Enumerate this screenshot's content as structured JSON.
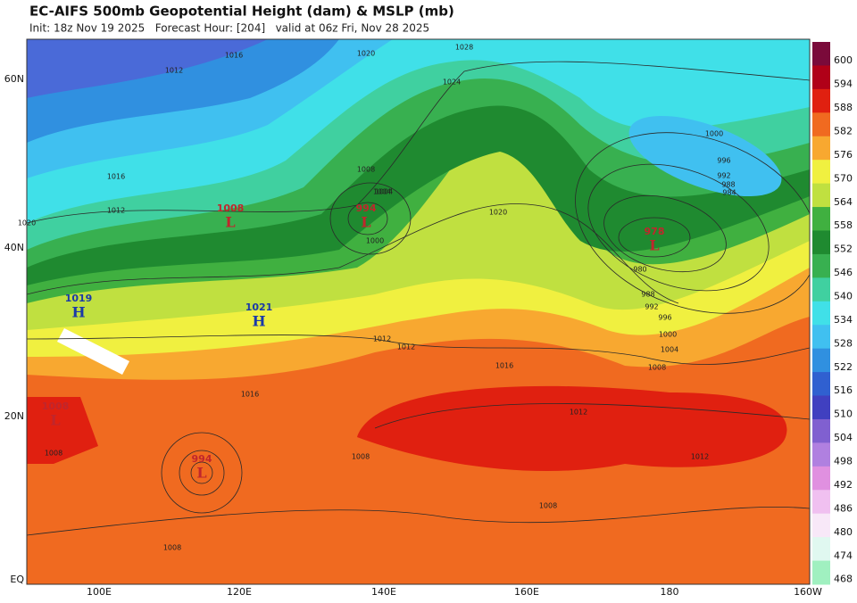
{
  "header": {
    "title": "EC-AIFS 500mb Geopotential Height (dam) & MSLP (mb)",
    "subtitle": "Init: 18z Nov 19 2025   Forecast Hour: [204]   valid at 06z Fri, Nov 28 2025"
  },
  "map": {
    "lat_labels": [
      "60N",
      "40N",
      "20N",
      "EQ"
    ],
    "lon_labels": [
      "100E",
      "120E",
      "140E",
      "160E",
      "180",
      "160W"
    ],
    "centers": [
      {
        "pressure": "1008",
        "symbol": "L"
      },
      {
        "pressure": "994",
        "symbol": "L"
      },
      {
        "pressure": "978",
        "symbol": "L"
      },
      {
        "pressure": "1019",
        "symbol": "H"
      },
      {
        "pressure": "1021",
        "symbol": "H"
      },
      {
        "pressure": "994",
        "symbol": "L"
      },
      {
        "pressure": "1008",
        "symbol": "L"
      }
    ],
    "isobar_labels": [
      "1012",
      "1016",
      "1020",
      "1024",
      "1028",
      "1016",
      "1012",
      "1008",
      "1004",
      "1000",
      "996",
      "992",
      "988",
      "984",
      "980",
      "988",
      "992",
      "996",
      "1000",
      "1004",
      "1008",
      "1020",
      "1012",
      "1016",
      "1012",
      "1012",
      "1008",
      "1008",
      "1008",
      "1012",
      "1016",
      "1020",
      "1008",
      "1004",
      "1000"
    ]
  },
  "colorbar": {
    "levels": [
      600,
      594,
      588,
      582,
      576,
      570,
      564,
      558,
      552,
      546,
      540,
      534,
      528,
      522,
      516,
      510,
      504,
      498,
      492,
      486,
      480,
      474,
      468
    ],
    "colors": [
      "#7a0a3a",
      "#b00018",
      "#e02010",
      "#f06a20",
      "#f8a830",
      "#f0f040",
      "#c0e040",
      "#40b040",
      "#1f8a30",
      "#38b050",
      "#40d0a0",
      "#40e0e8",
      "#40c0f0",
      "#3090e0",
      "#3060d0",
      "#4040c0",
      "#8060d0",
      "#b080e0",
      "#e090e0",
      "#f0c0f0",
      "#f8e8f8",
      "#e0f8f0",
      "#a0f0c0"
    ]
  }
}
